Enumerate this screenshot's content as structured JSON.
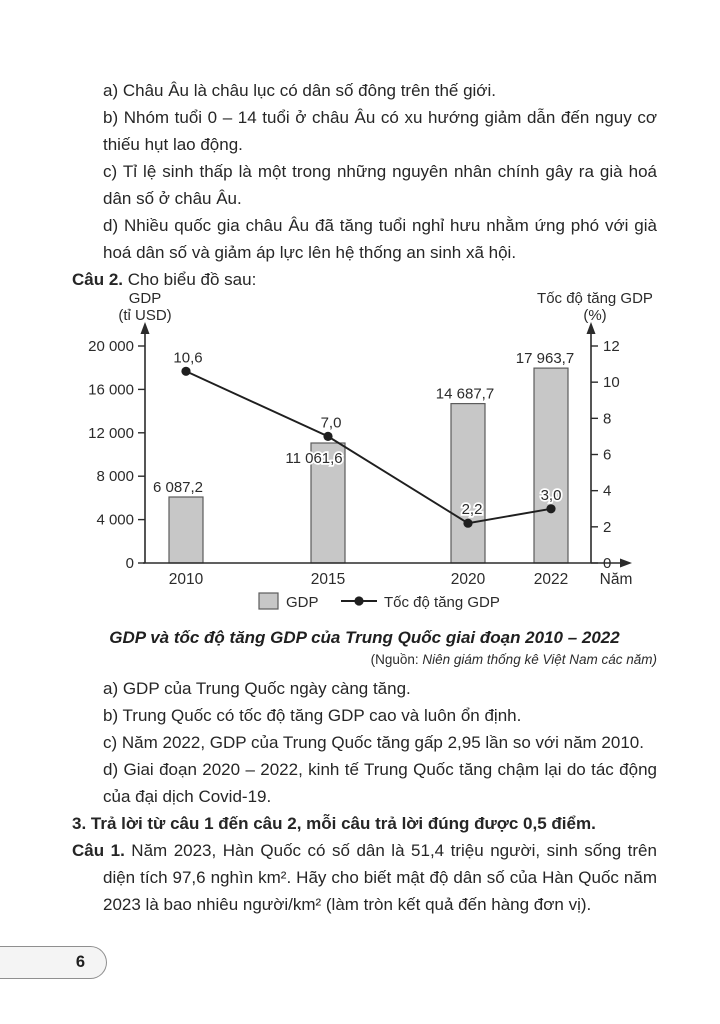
{
  "page": {
    "number": "6"
  },
  "section_a": {
    "items": [
      "a) Châu Âu là châu lục có dân số đông trên thế giới.",
      "b) Nhóm tuổi 0 – 14 tuổi ở châu Âu có xu hướng giảm dẫn đến nguy cơ thiếu hụt lao động.",
      "c) Tỉ lệ sinh thấp là một trong những nguyên nhân chính gây ra già hoá dân số ở châu Âu.",
      "d) Nhiều quốc gia châu Âu đã tăng tuổi nghỉ hưu nhằm ứng phó với già hoá dân số và giảm áp lực lên hệ thống an sinh xã hội."
    ]
  },
  "question2": {
    "label": "Câu 2.",
    "text": "Cho biểu đồ sau:"
  },
  "chart_data": {
    "type": "bar+line",
    "categories": [
      "2010",
      "2015",
      "2020",
      "2022"
    ],
    "series": [
      {
        "name": "GDP",
        "type": "bar",
        "axis": "left",
        "values": [
          6087.2,
          11061.6,
          14687.7,
          17963.7
        ],
        "labels": [
          "6 087,2",
          "11 061,6",
          "14 687,7",
          "17 963,7"
        ]
      },
      {
        "name": "Tốc độ tăng GDP",
        "type": "line",
        "axis": "right",
        "values": [
          10.6,
          7.0,
          2.2,
          3.0
        ],
        "labels": [
          "10,6",
          "7,0",
          "2,2",
          "3,0"
        ]
      }
    ],
    "left_axis": {
      "title": "GDP",
      "unit": "(tỉ USD)",
      "min": 0,
      "max": 20000,
      "ticks": [
        "0",
        "4 000",
        "8 000",
        "12 000",
        "16 000",
        "20 000"
      ]
    },
    "right_axis": {
      "title": "Tốc độ tăng GDP",
      "unit": "(%)",
      "min": 0,
      "max": 12,
      "ticks": [
        "0",
        "2",
        "4",
        "6",
        "8",
        "10",
        "12"
      ]
    },
    "x_axis": {
      "label": "Năm"
    },
    "legend": [
      {
        "swatch": "bar",
        "label": "GDP"
      },
      {
        "swatch": "line",
        "label": "Tốc độ tăng GDP"
      }
    ],
    "grid": false,
    "colors": {
      "bar_fill": "#c7c7c7",
      "bar_stroke": "#5c5c5c",
      "line": "#1f1f1f",
      "axis": "#2b2b2b"
    }
  },
  "caption": {
    "title": "GDP và tốc độ tăng GDP của Trung Quốc giai đoạn 2010 – 2022",
    "source_prefix": "(Nguồn: ",
    "source_text": "Niên giám thống kê Việt Nam các năm)"
  },
  "section_b": {
    "items": [
      "a) GDP của Trung Quốc ngày càng tăng.",
      "b) Trung Quốc có tốc độ tăng GDP cao và luôn ổn định.",
      "c) Năm 2022, GDP của Trung Quốc tăng gấp 2,95 lần so với năm 2010.",
      "d) Giai đoạn 2020 – 2022, kinh tế Trung Quốc tăng chậm lại do tác động của đại dịch Covid-19."
    ]
  },
  "section3": {
    "text": "3. Trả lời từ câu 1 đến câu 2, mỗi câu trả lời đúng được 0,5 điểm."
  },
  "question1": {
    "label": "Câu 1.",
    "text": "Năm 2023, Hàn Quốc có số dân là 51,4 triệu người, sinh sống trên diện tích 97,6 nghìn km². Hãy cho biết mật độ dân số của Hàn Quốc năm 2023 là bao nhiêu người/km² (làm tròn kết quả đến hàng đơn vị)."
  }
}
